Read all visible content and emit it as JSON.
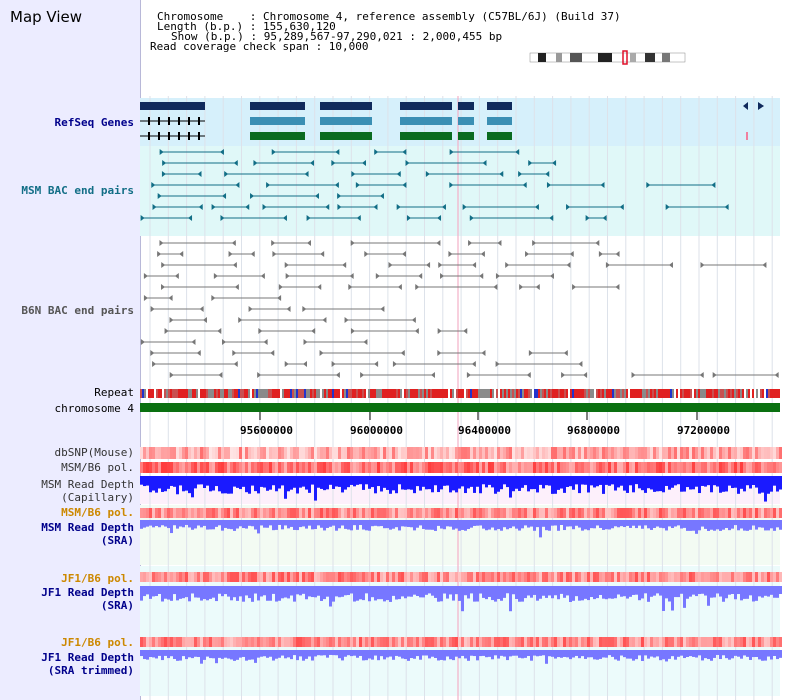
{
  "header": {
    "title": "Map View",
    "chromosome_line": "Chromosome    : Chromosome 4, reference assembly (C57BL/6J) (Build 37)",
    "length_line": "Length (b.p.) : 155,630,120",
    "show_line": "Show (b.p.) : 95,289,567-97,290,021 : 2,000,455 bp",
    "coverage_line": "Read coverage check span : 10,000"
  },
  "tracks": {
    "refseq": "RefSeq Genes",
    "msm_bac": "MSM BAC end pairs",
    "b6n_bac": "B6N BAC end pairs",
    "repeat": "Repeat",
    "chromosome": "chromosome 4",
    "dbsnp": "dbSNP(Mouse)",
    "msm_b6_pol": "MSM/B6 pol.",
    "msm_depth_cap": "MSM Read Depth\n(Capillary)",
    "msm_b6_pol2": "MSM/B6 pol.",
    "msm_depth_sra": "MSM Read Depth\n(SRA)",
    "jf1_b6_pol": "JF1/B6 pol.",
    "jf1_depth_sra": "JF1 Read Depth\n(SRA)",
    "jf1_b6_pol2": "JF1/B6 pol.",
    "jf1_depth_trim": "JF1 Read Depth\n(SRA trimmed)"
  },
  "axis": {
    "ticks": [
      "95600000",
      "96000000",
      "96400000",
      "96800000",
      "97200000"
    ]
  },
  "colors": {
    "panel": "#ececff",
    "refseq_bg": "#d6f0fb",
    "bac_bg": "#e0f8f8",
    "refseq_dark": "#102a5c",
    "refseq_mid": "#3b8fb4",
    "refseq_green": "#0a6b20",
    "msm_line": "#126e86",
    "b6n_line": "#777777",
    "chromosome_bar": "#0a7010",
    "depth_blue": "#1a1aff",
    "depth_light": "#7777ff",
    "label_navy": "#00008b",
    "label_orange": "#cc8800"
  }
}
